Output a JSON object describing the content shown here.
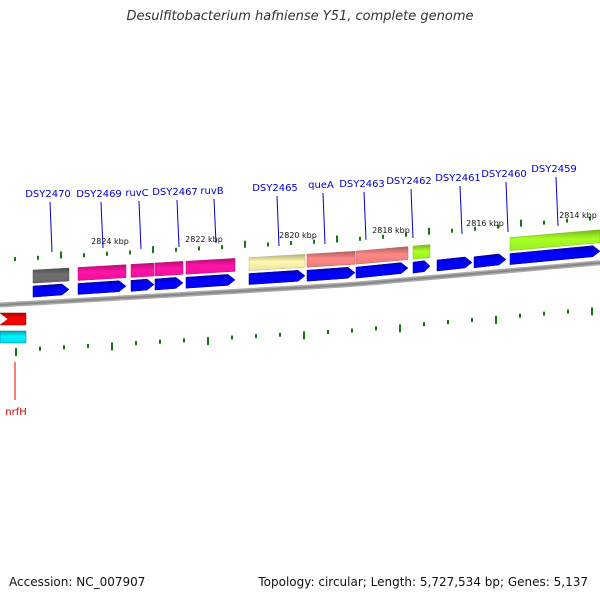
{
  "title": "Desulfitobacterium hafniense Y51, complete genome",
  "accession_label": "Accession: NC_007907",
  "summary_label": "Topology: circular; Length: 5,727,534 bp; Genes: 5,137",
  "colors": {
    "gene_label": "#0000cc",
    "gene_label_red": "#cc0000",
    "cds": "#0000ee",
    "backbone": "#888888",
    "tick": "#117711"
  },
  "scale_labels": [
    "2824 kbp",
    "2822 kbp",
    "2820 kbp",
    "2818 kbp",
    "2816 kbp",
    "2814 kbp"
  ],
  "genes": [
    {
      "name": "DSY2470",
      "color": "#666666"
    },
    {
      "name": "DSY2469",
      "color": "#ee1199"
    },
    {
      "name": "ruvC",
      "color": "#ee1199"
    },
    {
      "name": "DSY2467",
      "color": "#ee1199"
    },
    {
      "name": "ruvB",
      "color": "#ee1199"
    },
    {
      "name": "DSY2465",
      "color": "#ede2a0"
    },
    {
      "name": "queA",
      "color": "#e77c7c"
    },
    {
      "name": "DSY2463",
      "color": "#e77c7c"
    },
    {
      "name": "DSY2462",
      "color": "#99ee22"
    },
    {
      "name": "DSY2461",
      "color": ""
    },
    {
      "name": "DSY2460",
      "color": ""
    },
    {
      "name": "DSY2459",
      "color": "#99ee22"
    }
  ],
  "lower_gene": {
    "name": "nrfH",
    "color": "#ee0000",
    "cds_color": "#00ddee"
  }
}
